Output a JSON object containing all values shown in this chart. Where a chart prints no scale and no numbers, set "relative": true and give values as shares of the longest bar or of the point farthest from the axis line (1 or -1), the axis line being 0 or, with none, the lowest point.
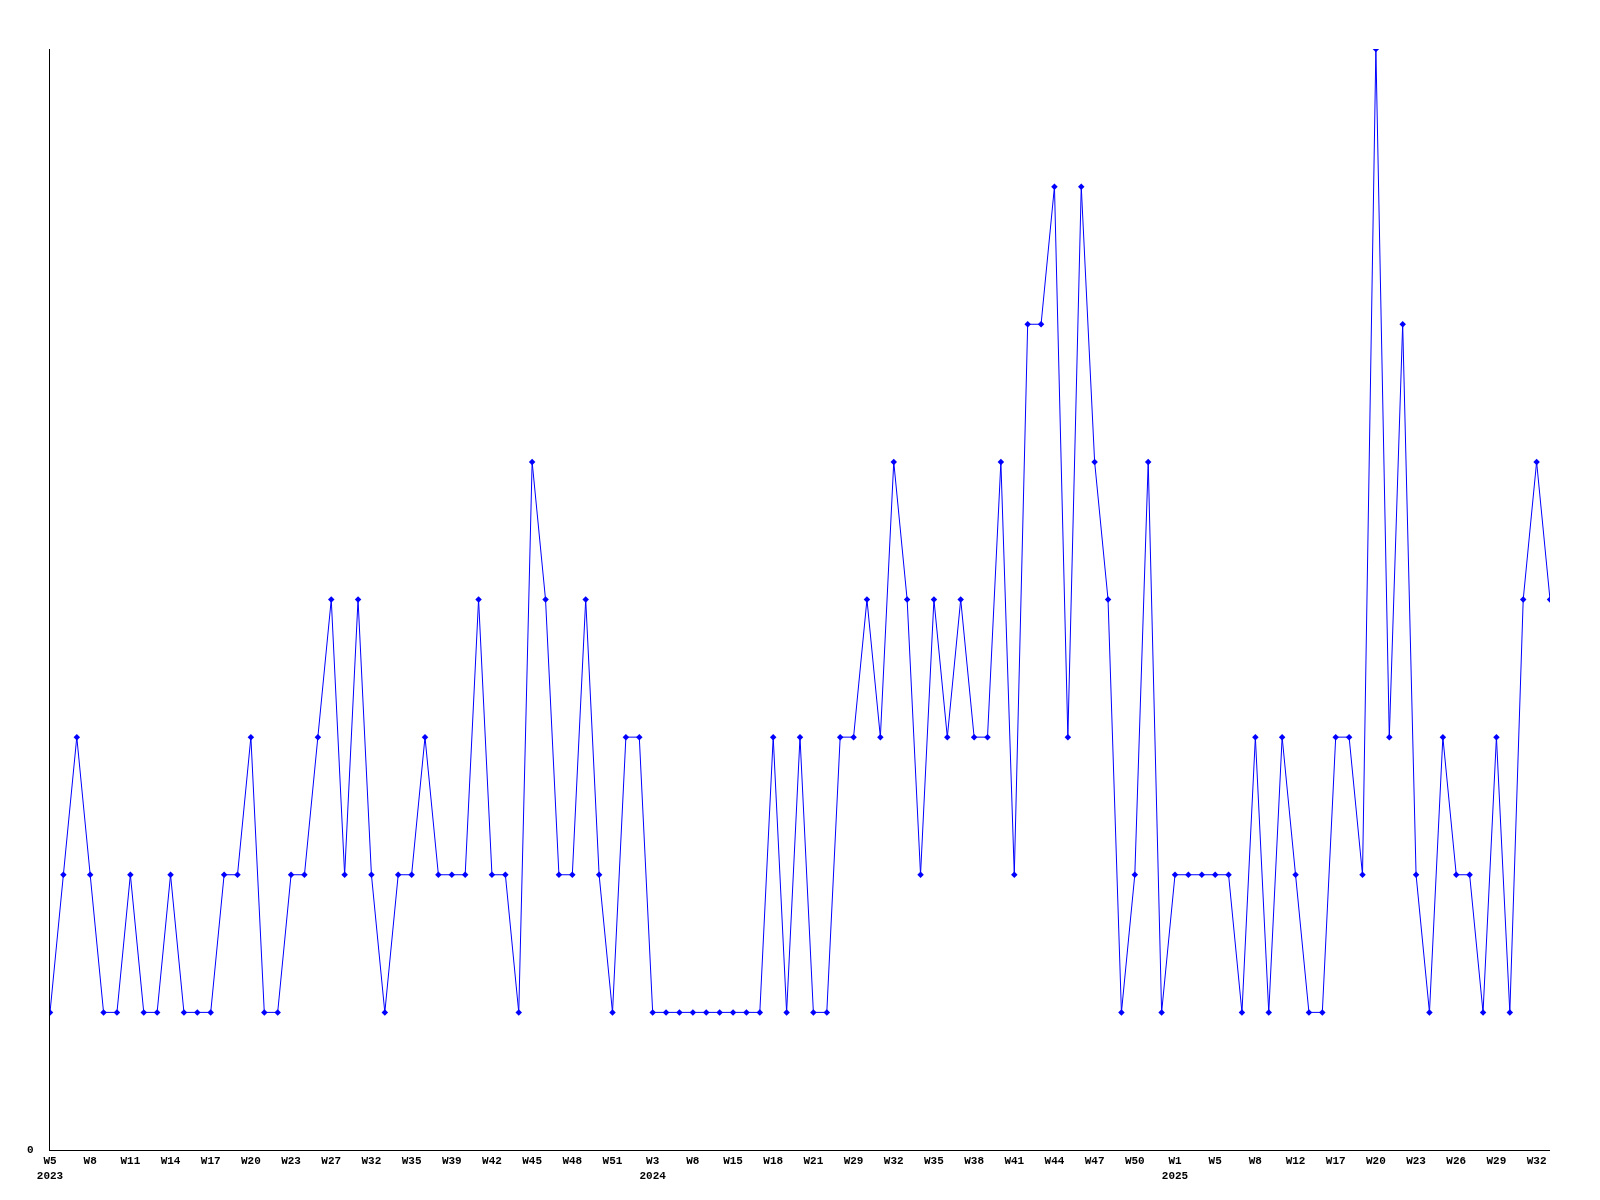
{
  "chart_data": {
    "type": "line",
    "relative": true,
    "marker": "diamond",
    "line_style": "solid",
    "annotations": [
      "0"
    ],
    "categories": [
      "W5\n2023",
      null,
      null,
      "W8",
      null,
      null,
      "W11",
      null,
      null,
      "W14",
      null,
      null,
      "W17",
      null,
      null,
      "W20",
      null,
      null,
      "W23",
      null,
      null,
      "W27",
      null,
      null,
      "W32",
      null,
      null,
      "W35",
      null,
      null,
      "W39",
      null,
      null,
      "W42",
      null,
      null,
      "W45",
      null,
      null,
      "W48",
      null,
      null,
      "W51",
      null,
      null,
      "W3\n2024",
      null,
      null,
      "W8",
      null,
      null,
      "W15",
      null,
      null,
      "W18",
      null,
      null,
      "W21",
      null,
      null,
      "W29",
      null,
      null,
      "W32",
      null,
      null,
      "W35",
      null,
      null,
      "W38",
      null,
      null,
      "W41",
      null,
      null,
      "W44",
      null,
      null,
      "W47",
      null,
      null,
      "W50",
      null,
      null,
      "W1\n2025",
      null,
      null,
      "W5",
      null,
      null,
      "W8",
      null,
      null,
      "W12",
      null,
      null,
      "W17",
      null,
      null,
      "W20",
      null,
      null,
      "W23",
      null,
      null,
      "W26",
      null,
      null,
      "W29",
      null,
      null,
      "W32",
      null
    ],
    "series": [
      {
        "color": "#0000ff",
        "values": [
          0.125,
          0.25,
          0.375,
          0.25,
          0.125,
          0.125,
          0.25,
          0.125,
          0.125,
          0.25,
          0.125,
          0.125,
          0.125,
          0.25,
          0.25,
          0.375,
          0.125,
          0.125,
          0.25,
          0.25,
          0.375,
          0.5,
          0.25,
          0.5,
          0.25,
          0.125,
          0.25,
          0.25,
          0.375,
          0.25,
          0.25,
          0.25,
          0.5,
          0.25,
          0.25,
          0.125,
          0.625,
          0.5,
          0.25,
          0.25,
          0.5,
          0.25,
          0.125,
          0.375,
          0.375,
          0.125,
          0.125,
          0.125,
          0.125,
          0.125,
          0.125,
          0.125,
          0.125,
          0.125,
          0.375,
          0.125,
          0.375,
          0.125,
          0.125,
          0.375,
          0.375,
          0.5,
          0.375,
          0.625,
          0.5,
          0.25,
          0.5,
          0.375,
          0.5,
          0.375,
          0.375,
          0.625,
          0.25,
          0.75,
          0.75,
          0.875,
          0.375,
          0.875,
          0.625,
          0.5,
          0.125,
          0.25,
          0.625,
          0.125,
          0.25,
          0.25,
          0.25,
          0.25,
          0.25,
          0.125,
          0.375,
          0.125,
          0.375,
          0.25,
          0.125,
          0.125,
          0.375,
          0.375,
          0.25,
          1,
          0.375,
          0.75,
          0.25,
          0.125,
          0.375,
          0.25,
          0.25,
          0.125,
          0.375,
          0.125,
          0.5,
          0.625,
          0.5
        ]
      }
    ]
  }
}
